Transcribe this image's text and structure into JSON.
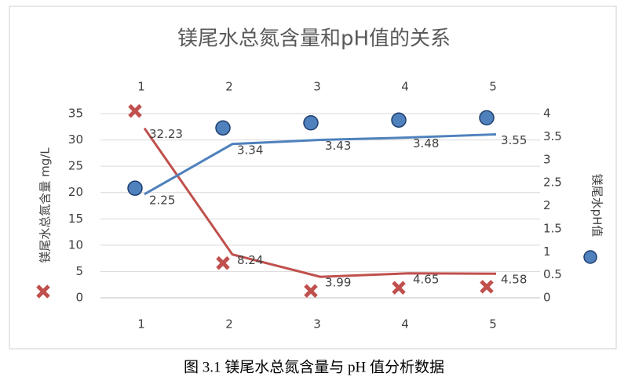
{
  "chart_data": {
    "type": "line",
    "title": "镁尾水总氮含量和pH值的关系",
    "categories": [
      "1",
      "2",
      "3",
      "4",
      "5"
    ],
    "series": [
      {
        "name": "镁尾水总氮含量 mg/L",
        "axis": "y",
        "color": "#c0504d",
        "marker": "x",
        "values": [
          32.23,
          8.24,
          3.99,
          4.65,
          4.58
        ],
        "marker_values": [
          35.5,
          6.6,
          1.3,
          1.9,
          2.1
        ]
      },
      {
        "name": "镁尾水pH值",
        "axis": "y2",
        "color": "#4f81bd",
        "marker": "circle",
        "values": [
          2.25,
          3.34,
          3.43,
          3.48,
          3.55
        ],
        "marker_values": [
          2.38,
          3.69,
          3.8,
          3.86,
          3.91
        ]
      }
    ],
    "ylim": [
      0,
      35
    ],
    "yticks": [
      0,
      5,
      10,
      15,
      20,
      25,
      30,
      35
    ],
    "y2lim": [
      0,
      4
    ],
    "y2ticks": [
      0,
      0.5,
      1,
      1.5,
      2,
      2.5,
      3,
      3.5,
      4
    ],
    "grid": true
  },
  "caption": "图 3.1  镁尾水总氮含量与 pH 值分析数据"
}
